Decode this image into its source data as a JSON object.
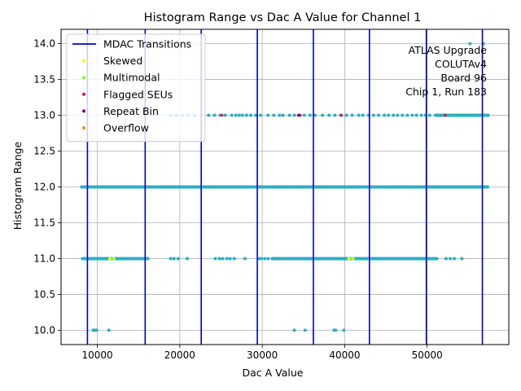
{
  "chart_data": {
    "type": "scatter",
    "title": "Histogram Range vs Dac A Value for Channel 1",
    "xlabel": "Dac A Value",
    "ylabel": "Histogram Range",
    "xlim": [
      5600,
      59900
    ],
    "ylim": [
      9.8,
      14.2
    ],
    "xticks": [
      10000,
      20000,
      30000,
      40000,
      50000
    ],
    "xtick_labels": [
      "10000",
      "20000",
      "30000",
      "40000",
      "50000"
    ],
    "yticks": [
      10.0,
      10.5,
      11.0,
      11.5,
      12.0,
      12.5,
      13.0,
      13.5,
      14.0
    ],
    "ytick_labels": [
      "10.0",
      "10.5",
      "11.0",
      "11.5",
      "12.0",
      "12.5",
      "13.0",
      "13.5",
      "14.0"
    ],
    "grid": true,
    "legend_position": "top-left",
    "annotation_lines": [
      "ATLAS Upgrade",
      "COLUTAv4",
      "Board 96",
      "Chip 1, Run 183"
    ],
    "mdac_transitions": {
      "name": "MDAC Transitions",
      "color": "#0000cc",
      "x": [
        8800,
        15800,
        22600,
        29400,
        36200,
        43000,
        49900,
        56700
      ]
    },
    "point_color": "#2ab0c0",
    "series": [
      {
        "name": "data",
        "color": "#2ab0c0",
        "segments": [
          {
            "y": 12,
            "x_start": 8100,
            "x_end": 57400,
            "step": 90
          },
          {
            "y": 11,
            "x_start": 8200,
            "x_end": 16200,
            "step": 90
          },
          {
            "y": 11,
            "x_start": 31200,
            "x_end": 41500,
            "step": 90
          },
          {
            "y": 11,
            "x_start": 41500,
            "x_end": 51200,
            "step": 110
          },
          {
            "y": 13,
            "x_start": 51000,
            "x_end": 57400,
            "step": 90
          }
        ],
        "points_y13": [
          18900,
          19600,
          20300,
          21000,
          21800,
          22700,
          23500,
          24200,
          24900,
          25500,
          26300,
          26800,
          27200,
          27600,
          28100,
          28600,
          29200,
          29800,
          30700,
          31400,
          32100,
          32500,
          33300,
          33900,
          34500,
          35100,
          35800,
          36400,
          37300,
          38100,
          38800,
          39500,
          40200,
          40900,
          41700,
          42200,
          42900,
          43500,
          44100,
          44800,
          45300,
          45900,
          46400,
          47000,
          47600,
          48200,
          48700,
          49300,
          49800,
          50300
        ],
        "points_y11": [
          18900,
          19300,
          19800,
          20900,
          24300,
          24800,
          25200,
          25700,
          26100,
          26600,
          27900,
          29600,
          29900,
          30300,
          30700,
          52300,
          52800,
          53300,
          54200
        ],
        "points_y10": [
          9500,
          9700,
          9900,
          11400,
          33900,
          35200,
          38700,
          38900,
          39900
        ],
        "points_y14": [
          55200,
          56800
        ]
      },
      {
        "name": "Skewed",
        "color": "#ffff00",
        "points": [
          {
            "x": 11500,
            "y": 11
          },
          {
            "x": 12000,
            "y": 11
          },
          {
            "x": 40500,
            "y": 11
          },
          {
            "x": 41000,
            "y": 11
          }
        ]
      },
      {
        "name": "Multimodal",
        "color": "#7fff00",
        "points": [
          {
            "x": 11800,
            "y": 11
          },
          {
            "x": 40800,
            "y": 11
          }
        ]
      },
      {
        "name": "Flagged SEUs",
        "color": "#dc143c",
        "points": [
          {
            "x": 25100,
            "y": 13
          },
          {
            "x": 34600,
            "y": 13
          },
          {
            "x": 39600,
            "y": 13
          },
          {
            "x": 52200,
            "y": 13
          }
        ]
      },
      {
        "name": "Repeat Bin",
        "color": "#800080",
        "points": [
          {
            "x": 34400,
            "y": 13
          }
        ]
      },
      {
        "name": "Overflow",
        "color": "#ff8c00",
        "points": []
      }
    ]
  }
}
